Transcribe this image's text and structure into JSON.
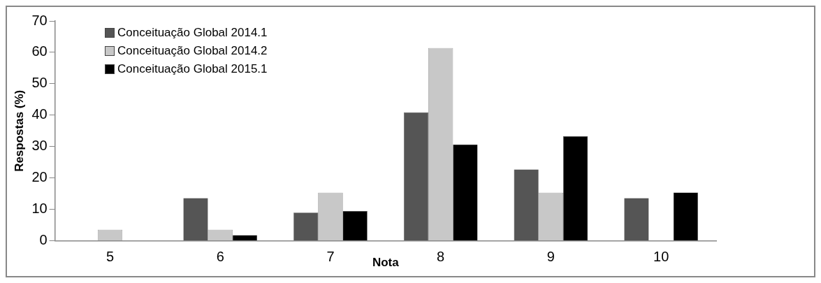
{
  "chart_data": {
    "type": "bar",
    "xlabel": "Nota",
    "ylabel": "Respostas (%)",
    "categories": [
      "5",
      "6",
      "7",
      "8",
      "9",
      "10"
    ],
    "series": [
      {
        "name": "Conceituação Global 2014.1",
        "color": "#555555",
        "values": [
          0,
          13.6,
          9,
          40.9,
          22.7,
          13.6
        ]
      },
      {
        "name": "Conceituação Global 2014.2",
        "color": "#c8c8c8",
        "values": [
          3.5,
          3.5,
          15.3,
          61.4,
          15.3,
          0
        ]
      },
      {
        "name": "Conceituação Global 2015.1",
        "color": "#000000",
        "values": [
          0,
          1.8,
          9.5,
          30.7,
          33.3,
          15.4
        ]
      }
    ],
    "ylim": [
      0,
      70
    ],
    "yticks": [
      0,
      10,
      20,
      30,
      40,
      50,
      60,
      70
    ],
    "grid": false,
    "legend": "top left"
  }
}
